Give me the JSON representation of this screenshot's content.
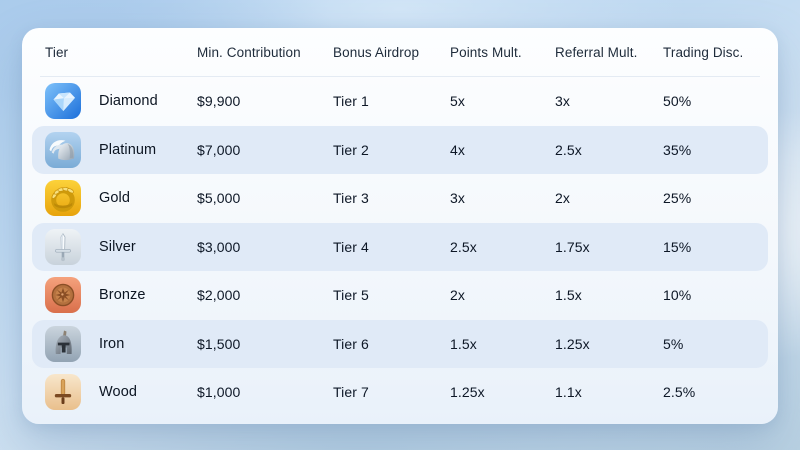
{
  "table": {
    "columns": [
      "Tier",
      "Min. Contribution",
      "Bonus Airdrop",
      "Points Mult.",
      "Referral Mult.",
      "Trading Disc."
    ],
    "rows": [
      {
        "tier": "Diamond",
        "icon": "diamond-icon",
        "min_contribution": "$9,900",
        "bonus_airdrop": "Tier 1",
        "points_mult": "5x",
        "referral_mult": "3x",
        "trading_disc": "50%",
        "highlighted": false
      },
      {
        "tier": "Platinum",
        "icon": "platinum-icon",
        "min_contribution": "$7,000",
        "bonus_airdrop": "Tier 2",
        "points_mult": "4x",
        "referral_mult": "2.5x",
        "trading_disc": "35%",
        "highlighted": true
      },
      {
        "tier": "Gold",
        "icon": "gold-icon",
        "min_contribution": "$5,000",
        "bonus_airdrop": "Tier 3",
        "points_mult": "3x",
        "referral_mult": "2x",
        "trading_disc": "25%",
        "highlighted": false
      },
      {
        "tier": "Silver",
        "icon": "silver-icon",
        "min_contribution": "$3,000",
        "bonus_airdrop": "Tier 4",
        "points_mult": "2.5x",
        "referral_mult": "1.75x",
        "trading_disc": "15%",
        "highlighted": true
      },
      {
        "tier": "Bronze",
        "icon": "bronze-icon",
        "min_contribution": "$2,000",
        "bonus_airdrop": "Tier 5",
        "points_mult": "2x",
        "referral_mult": "1.5x",
        "trading_disc": "10%",
        "highlighted": false
      },
      {
        "tier": "Iron",
        "icon": "iron-icon",
        "min_contribution": "$1,500",
        "bonus_airdrop": "Tier 6",
        "points_mult": "1.5x",
        "referral_mult": "1.25x",
        "trading_disc": "5%",
        "highlighted": true
      },
      {
        "tier": "Wood",
        "icon": "wood-icon",
        "min_contribution": "$1,000",
        "bonus_airdrop": "Tier 7",
        "points_mult": "1.25x",
        "referral_mult": "1.1x",
        "trading_disc": "2.5%",
        "highlighted": false
      }
    ]
  },
  "colors": {
    "highlight_row": "#e0eaf7",
    "card_background": "#f4f8fc",
    "header_text": "#1e2b3a",
    "cell_text": "#0d1726",
    "sky_blue": "#a8cbec",
    "diamond_accent": "#1d72dd",
    "gold_accent": "#e8a40e",
    "bronze_accent": "#b97644"
  }
}
